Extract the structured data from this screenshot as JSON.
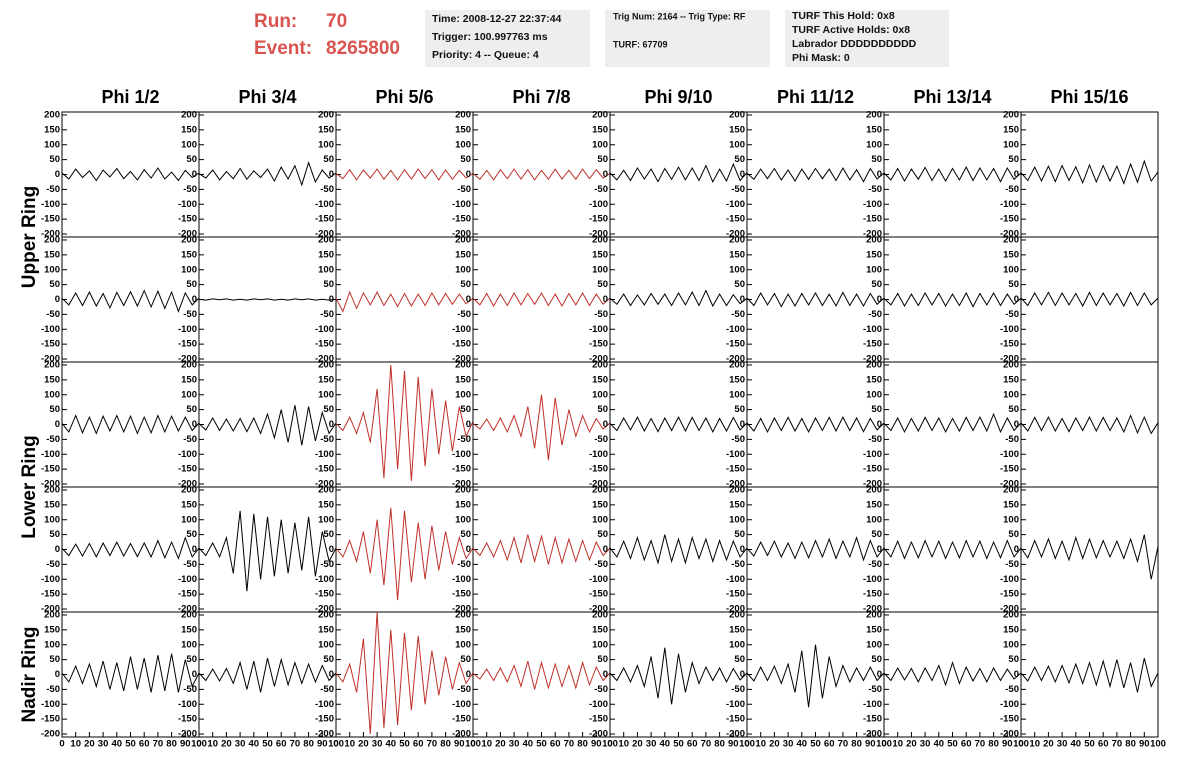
{
  "header": {
    "run_label": "Run:",
    "run": 70,
    "event_label": "Event:",
    "event": 8265800,
    "boxes": [
      [
        "Time: 2008-12-27 22:37:44",
        "Trigger: 100.997763 ms",
        "Priority: 4 -- Queue: 4"
      ],
      [
        "Trig Num: 2164 -- Trig Type: RF",
        "TURF: 67709"
      ],
      [
        "TURF This Hold: 0x8",
        "TURF Active Holds: 0x8",
        "Labrador DDDDDDDDDD",
        "Phi Mask: 0"
      ]
    ]
  },
  "chart_data": {
    "type": "line-grid",
    "column_labels": [
      "Phi 1/2",
      "Phi 3/4",
      "Phi 5/6",
      "Phi 7/8",
      "Phi 9/10",
      "Phi 11/12",
      "Phi 13/14",
      "Phi 15/16"
    ],
    "row_labels": [
      "Upper Ring",
      null,
      "Lower Ring",
      null,
      "Nadir Ring"
    ],
    "xlim": [
      0,
      100
    ],
    "xticks": [
      0,
      10,
      20,
      30,
      40,
      50,
      60,
      70,
      80,
      90,
      100
    ],
    "ylim": [
      -210,
      210
    ],
    "yticks": [
      -200,
      -150,
      -100,
      -50,
      0,
      50,
      100,
      150,
      200
    ],
    "x": [
      0,
      5,
      10,
      15,
      20,
      25,
      30,
      35,
      40,
      45,
      50,
      55,
      60,
      65,
      70,
      75,
      80,
      85,
      90,
      95,
      100
    ],
    "panels": [
      [
        {
          "color": "#000000",
          "values": [
            5,
            -15,
            18,
            -10,
            12,
            -20,
            15,
            -8,
            20,
            -14,
            10,
            -18,
            16,
            -12,
            22,
            -15,
            8,
            -20,
            14,
            -10,
            5
          ]
        },
        {
          "color": "#000000",
          "values": [
            3,
            -12,
            15,
            -18,
            10,
            -14,
            20,
            -16,
            12,
            -10,
            18,
            -22,
            25,
            -15,
            30,
            -35,
            40,
            -25,
            15,
            -12,
            5
          ]
        },
        {
          "color": "#c0302a",
          "values": [
            4,
            -14,
            16,
            -18,
            15,
            -12,
            18,
            -16,
            14,
            -18,
            16,
            -15,
            18,
            -14,
            16,
            -18,
            15,
            -16,
            14,
            -12,
            4
          ]
        },
        {
          "color": "#c0302a",
          "values": [
            4,
            -16,
            14,
            -18,
            16,
            -14,
            18,
            -15,
            16,
            -18,
            14,
            -16,
            18,
            -15,
            14,
            -16,
            18,
            -14,
            16,
            -12,
            4
          ]
        },
        {
          "color": "#000000",
          "values": [
            5,
            -18,
            14,
            -20,
            22,
            -15,
            18,
            -24,
            20,
            -16,
            25,
            -18,
            22,
            -20,
            30,
            -25,
            18,
            -22,
            35,
            -20,
            6
          ]
        },
        {
          "color": "#000000",
          "values": [
            4,
            -16,
            18,
            -14,
            20,
            -18,
            15,
            -22,
            18,
            -16,
            20,
            -14,
            18,
            -20,
            22,
            -18,
            16,
            -24,
            20,
            -15,
            5
          ]
        },
        {
          "color": "#000000",
          "values": [
            5,
            -18,
            20,
            -22,
            18,
            -16,
            24,
            -20,
            18,
            -22,
            20,
            -18,
            25,
            -20,
            22,
            -18,
            20,
            -24,
            22,
            -16,
            5
          ]
        },
        {
          "color": "#000000",
          "values": [
            6,
            -20,
            25,
            -22,
            28,
            -24,
            30,
            -20,
            26,
            -28,
            32,
            -25,
            30,
            -22,
            28,
            -30,
            35,
            -26,
            45,
            -22,
            8
          ]
        }
      ],
      [
        {
          "color": "#000000",
          "values": [
            4,
            -18,
            22,
            -20,
            25,
            -22,
            20,
            -28,
            24,
            -20,
            26,
            -22,
            30,
            -25,
            28,
            -30,
            25,
            -40,
            22,
            -18,
            5
          ]
        },
        {
          "color": "#000000",
          "values": [
            1,
            -2,
            2,
            -1,
            2,
            -2,
            1,
            -2,
            2,
            -1,
            2,
            -2,
            1,
            -2,
            2,
            -1,
            2,
            -2,
            1,
            -2,
            1
          ]
        },
        {
          "color": "#c0302a",
          "values": [
            4,
            -40,
            25,
            -30,
            22,
            -18,
            25,
            -20,
            18,
            -24,
            20,
            -22,
            18,
            -20,
            22,
            -18,
            20,
            -16,
            18,
            -14,
            4
          ]
        },
        {
          "color": "#c0302a",
          "values": [
            5,
            -18,
            20,
            -22,
            18,
            -20,
            22,
            -18,
            20,
            -16,
            22,
            -20,
            18,
            -22,
            20,
            -18,
            22,
            -20,
            18,
            -16,
            5
          ]
        },
        {
          "color": "#000000",
          "values": [
            4,
            -16,
            18,
            -20,
            15,
            -18,
            20,
            -16,
            18,
            -20,
            22,
            -18,
            25,
            -20,
            30,
            -22,
            18,
            -20,
            16,
            -14,
            4
          ]
        },
        {
          "color": "#000000",
          "values": [
            5,
            -20,
            22,
            -18,
            20,
            -24,
            18,
            -22,
            20,
            -18,
            22,
            -20,
            18,
            -22,
            24,
            -20,
            18,
            -22,
            20,
            -16,
            5
          ]
        },
        {
          "color": "#000000",
          "values": [
            4,
            -18,
            20,
            -22,
            18,
            -20,
            22,
            -18,
            20,
            -22,
            18,
            -20,
            22,
            -24,
            20,
            -18,
            22,
            -20,
            18,
            -16,
            4
          ]
        },
        {
          "color": "#000000",
          "values": [
            5,
            -20,
            22,
            -18,
            24,
            -20,
            22,
            -18,
            20,
            -22,
            24,
            -20,
            22,
            -18,
            20,
            -22,
            24,
            -20,
            22,
            -18,
            5
          ]
        }
      ],
      [
        {
          "color": "#000000",
          "values": [
            4,
            -25,
            30,
            -28,
            25,
            -30,
            28,
            -22,
            30,
            -25,
            28,
            -30,
            25,
            -28,
            30,
            -25,
            28,
            -22,
            25,
            -20,
            5
          ]
        },
        {
          "color": "#000000",
          "values": [
            3,
            -18,
            22,
            -20,
            18,
            -22,
            20,
            -24,
            22,
            -30,
            35,
            -45,
            50,
            -60,
            65,
            -70,
            60,
            -55,
            40,
            -30,
            5
          ]
        },
        {
          "color": "#c0302a",
          "values": [
            4,
            -20,
            25,
            -30,
            40,
            -60,
            120,
            -180,
            200,
            -150,
            180,
            -190,
            160,
            -140,
            120,
            -100,
            80,
            -90,
            60,
            -40,
            10
          ]
        },
        {
          "color": "#c0302a",
          "values": [
            4,
            -15,
            18,
            -20,
            22,
            -25,
            30,
            -40,
            60,
            -80,
            100,
            -120,
            90,
            -70,
            50,
            -40,
            30,
            -25,
            20,
            -15,
            5
          ]
        },
        {
          "color": "#000000",
          "values": [
            4,
            -20,
            22,
            -18,
            25,
            -22,
            20,
            -24,
            22,
            -20,
            25,
            -22,
            24,
            -20,
            22,
            -25,
            20,
            -22,
            24,
            -18,
            5
          ]
        },
        {
          "color": "#000000",
          "values": [
            5,
            -22,
            20,
            -25,
            22,
            -20,
            24,
            -22,
            20,
            -25,
            22,
            -20,
            24,
            -22,
            25,
            -20,
            22,
            -24,
            20,
            -18,
            5
          ]
        },
        {
          "color": "#000000",
          "values": [
            4,
            -20,
            22,
            -25,
            20,
            -22,
            24,
            -20,
            22,
            -25,
            20,
            -22,
            24,
            -20,
            25,
            -22,
            35,
            -25,
            22,
            -20,
            5
          ]
        },
        {
          "color": "#000000",
          "values": [
            5,
            -22,
            24,
            -20,
            25,
            -22,
            20,
            -24,
            22,
            -20,
            25,
            -22,
            24,
            -20,
            22,
            -25,
            30,
            -28,
            25,
            -30,
            6
          ]
        }
      ],
      [
        {
          "color": "#000000",
          "values": [
            4,
            -20,
            18,
            -22,
            20,
            -25,
            22,
            -20,
            25,
            -22,
            20,
            -24,
            22,
            -25,
            30,
            -28,
            25,
            -30,
            40,
            -25,
            5
          ]
        },
        {
          "color": "#000000",
          "values": [
            5,
            -20,
            22,
            -25,
            40,
            -80,
            130,
            -140,
            120,
            -100,
            110,
            -90,
            100,
            -80,
            90,
            -70,
            110,
            -90,
            60,
            -40,
            5
          ]
        },
        {
          "color": "#c0302a",
          "values": [
            5,
            -25,
            30,
            -40,
            60,
            -80,
            100,
            -120,
            140,
            -170,
            130,
            -110,
            90,
            -100,
            80,
            -70,
            60,
            -50,
            40,
            -30,
            5
          ]
        },
        {
          "color": "#c0302a",
          "values": [
            5,
            -20,
            22,
            -25,
            30,
            -35,
            40,
            -45,
            50,
            -40,
            45,
            -50,
            40,
            -45,
            35,
            -40,
            30,
            -35,
            25,
            -20,
            5
          ]
        },
        {
          "color": "#000000",
          "values": [
            5,
            -25,
            28,
            -30,
            40,
            -35,
            30,
            -45,
            50,
            -40,
            35,
            -45,
            40,
            -30,
            35,
            -40,
            30,
            -35,
            28,
            -25,
            5
          ]
        },
        {
          "color": "#000000",
          "values": [
            4,
            -22,
            25,
            -20,
            28,
            -25,
            22,
            -30,
            25,
            -28,
            30,
            -25,
            35,
            -30,
            28,
            -25,
            40,
            -35,
            30,
            -25,
            5
          ]
        },
        {
          "color": "#000000",
          "values": [
            5,
            -25,
            28,
            -30,
            25,
            -28,
            30,
            -25,
            28,
            -30,
            25,
            -28,
            30,
            -25,
            28,
            -30,
            25,
            -28,
            30,
            -25,
            5
          ]
        },
        {
          "color": "#000000",
          "values": [
            5,
            -28,
            30,
            -25,
            35,
            -30,
            28,
            -35,
            40,
            -30,
            35,
            -28,
            30,
            -25,
            28,
            -30,
            35,
            -40,
            50,
            -100,
            10
          ]
        }
      ],
      [
        {
          "color": "#000000",
          "values": [
            5,
            -25,
            28,
            -30,
            35,
            -40,
            45,
            -50,
            40,
            -55,
            60,
            -50,
            55,
            -60,
            65,
            -55,
            70,
            -60,
            50,
            -40,
            5
          ]
        },
        {
          "color": "#000000",
          "values": [
            5,
            -20,
            18,
            -22,
            20,
            -30,
            40,
            -50,
            45,
            -60,
            55,
            -40,
            50,
            -35,
            40,
            -30,
            35,
            -25,
            30,
            -20,
            5
          ]
        },
        {
          "color": "#c0302a",
          "values": [
            5,
            -25,
            35,
            -60,
            120,
            -200,
            210,
            -180,
            150,
            -170,
            140,
            -120,
            130,
            -100,
            80,
            -70,
            60,
            -50,
            40,
            -30,
            5
          ]
        },
        {
          "color": "#c0302a",
          "values": [
            4,
            -15,
            18,
            -20,
            22,
            -25,
            30,
            -40,
            45,
            -50,
            40,
            -45,
            35,
            -40,
            30,
            -45,
            40,
            -35,
            25,
            -20,
            5
          ]
        },
        {
          "color": "#000000",
          "values": [
            5,
            -20,
            22,
            -25,
            30,
            -40,
            60,
            -80,
            90,
            -100,
            70,
            -60,
            40,
            -30,
            25,
            -20,
            22,
            -25,
            20,
            -18,
            5
          ]
        },
        {
          "color": "#000000",
          "values": [
            5,
            -22,
            25,
            -20,
            28,
            -30,
            35,
            -60,
            80,
            -110,
            100,
            -80,
            60,
            -40,
            30,
            -25,
            22,
            -20,
            25,
            -20,
            5
          ]
        },
        {
          "color": "#000000",
          "values": [
            5,
            -20,
            22,
            -18,
            20,
            -25,
            22,
            -20,
            30,
            -35,
            40,
            -30,
            25,
            -22,
            20,
            -25,
            22,
            -20,
            18,
            -15,
            5
          ]
        },
        {
          "color": "#000000",
          "values": [
            5,
            -22,
            25,
            -20,
            28,
            -25,
            30,
            -28,
            35,
            -30,
            40,
            -35,
            45,
            -40,
            50,
            -45,
            40,
            -60,
            55,
            -40,
            5
          ]
        }
      ]
    ]
  }
}
